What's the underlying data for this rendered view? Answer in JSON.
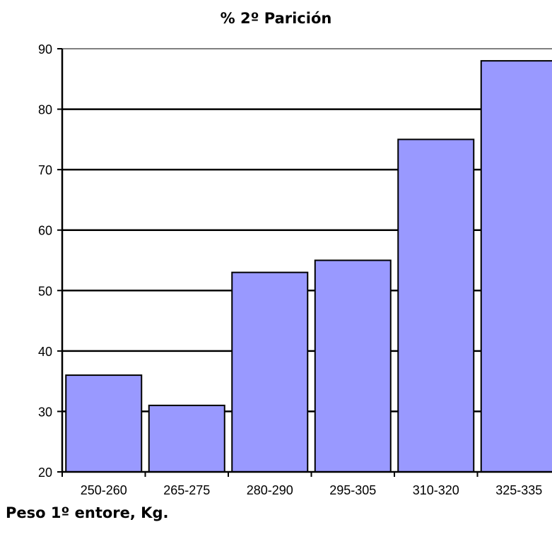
{
  "chart_data": {
    "type": "bar",
    "title": "% 2º Parición",
    "xlabel": "Peso 1º entore, Kg.",
    "ylabel": "",
    "categories": [
      "250-260",
      "265-275",
      "280-290",
      "295-305",
      "310-320",
      "325-335"
    ],
    "values": [
      36,
      31,
      53,
      55,
      75,
      88
    ],
    "ylim": [
      20,
      90
    ],
    "yticks": [
      20,
      30,
      40,
      50,
      60,
      70,
      80,
      90
    ],
    "grid": true,
    "legend": "none",
    "bar_color": "#9999ff"
  }
}
